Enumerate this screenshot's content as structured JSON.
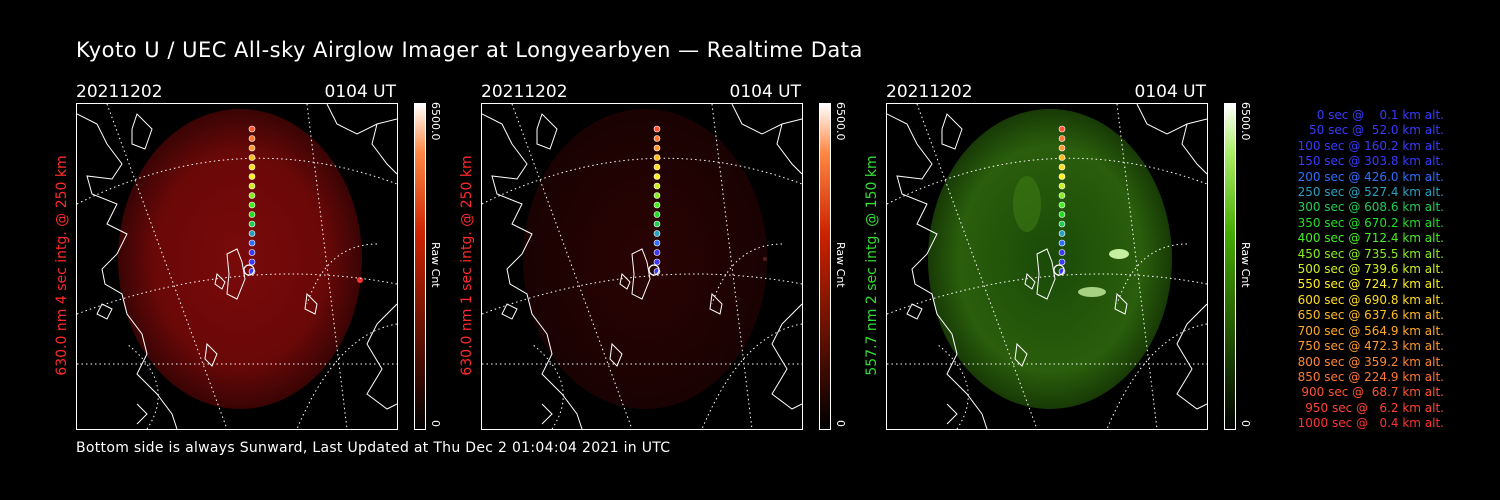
{
  "title": "Kyoto U / UEC All-sky Airglow Imager at Longyearbyen — Realtime Data",
  "footer": "Bottom side is always Sunward, Last Updated at Thu Dec  2 01:04:04 2021 in UTC",
  "panels": [
    {
      "date": "20211202",
      "time": "0104 UT",
      "side_label": "630.0 nm 4 sec intg. @ 250 km",
      "side_color": "#ff2a2a",
      "colorbar_max": "6500.0",
      "colorbar_min": "0",
      "colorbar_label": "Raw Cnt",
      "colorbar_color": "#ff3a00"
    },
    {
      "date": "20211202",
      "time": "0104 UT",
      "side_label": "630.0 nm 1 sec intg. @ 250 km",
      "side_color": "#ff2a2a",
      "colorbar_max": "6500.0",
      "colorbar_min": "0",
      "colorbar_label": "Raw Cnt",
      "colorbar_color": "#ff3a00"
    },
    {
      "date": "20211202",
      "time": "0104 UT",
      "side_label": "557.7 nm 2 sec intg. @ 150 km",
      "side_color": "#33dd33",
      "colorbar_max": "6500.0",
      "colorbar_min": "0",
      "colorbar_label": "Raw Cnt",
      "colorbar_color": "#33cc00"
    }
  ],
  "legend": [
    {
      "text": "0 sec @    0.1 km alt.",
      "color": "#3a3aff"
    },
    {
      "text": "50 sec @  52.0 km alt.",
      "color": "#3a3aff"
    },
    {
      "text": "100 sec @ 160.2 km alt.",
      "color": "#3a3aff"
    },
    {
      "text": "150 sec @ 303.8 km alt.",
      "color": "#3a3aff"
    },
    {
      "text": "200 sec @ 426.0 km alt.",
      "color": "#2f6fff"
    },
    {
      "text": "250 sec @ 527.4 km alt.",
      "color": "#2aa0c0"
    },
    {
      "text": "300 sec @ 608.6 km alt.",
      "color": "#22cc55"
    },
    {
      "text": "350 sec @ 670.2 km alt.",
      "color": "#22dd22"
    },
    {
      "text": "400 sec @ 712.4 km alt.",
      "color": "#44ee22"
    },
    {
      "text": "450 sec @ 735.5 km alt.",
      "color": "#88ee22"
    },
    {
      "text": "500 sec @ 739.6 km alt.",
      "color": "#ccee22"
    },
    {
      "text": "550 sec @ 724.7 km alt.",
      "color": "#ffee22"
    },
    {
      "text": "600 sec @ 690.8 km alt.",
      "color": "#ffdd22"
    },
    {
      "text": "650 sec @ 637.6 km alt.",
      "color": "#ffbb22"
    },
    {
      "text": "700 sec @ 564.9 km alt.",
      "color": "#ffaa22"
    },
    {
      "text": "750 sec @ 472.3 km alt.",
      "color": "#ff9933"
    },
    {
      "text": "800 sec @ 359.2 km alt.",
      "color": "#ff8833"
    },
    {
      "text": "850 sec @ 224.9 km alt.",
      "color": "#ff7733"
    },
    {
      "text": "900 sec @  68.7 km alt.",
      "color": "#ff5533"
    },
    {
      "text": "950 sec @   6.2 km alt.",
      "color": "#ff4433"
    },
    {
      "text": "1000 sec @   0.4 km alt.",
      "color": "#ff3333"
    }
  ]
}
